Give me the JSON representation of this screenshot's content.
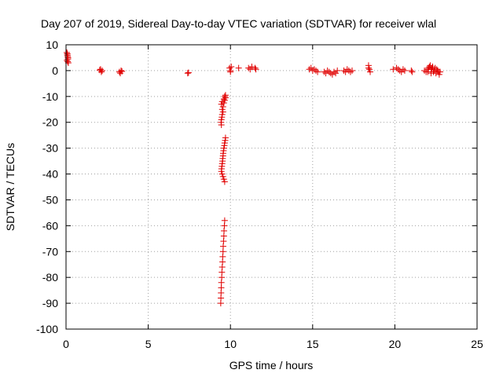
{
  "chart_data": {
    "type": "scatter",
    "title": "Day 207 of 2019, Sidereal Day-to-day VTEC variation (SDTVAR) for receiver wlal",
    "xlabel": "GPS time / hours",
    "ylabel": "SDTVAR / TECUs",
    "xlim": [
      0,
      25
    ],
    "ylim": [
      -100,
      10
    ],
    "xticks": [
      0,
      5,
      10,
      15,
      20,
      25
    ],
    "yticks": [
      10,
      0,
      -10,
      -20,
      -30,
      -40,
      -50,
      -60,
      -70,
      -80,
      -90,
      -100
    ],
    "grid": true,
    "marker": "+",
    "color": "#e00000",
    "series": [
      {
        "name": "SDTVAR",
        "points": [
          [
            0.05,
            7
          ],
          [
            0.08,
            6
          ],
          [
            0.1,
            5.5
          ],
          [
            0.12,
            5
          ],
          [
            0.06,
            4
          ],
          [
            0.1,
            3.5
          ],
          [
            0.14,
            3
          ],
          [
            0.08,
            6.5
          ],
          [
            0.12,
            4.5
          ],
          [
            2.1,
            0.5
          ],
          [
            2.2,
            0
          ],
          [
            2.15,
            -0.5
          ],
          [
            2.05,
            0.2
          ],
          [
            3.25,
            -0.5
          ],
          [
            3.35,
            0
          ],
          [
            3.3,
            -1
          ],
          [
            3.4,
            -0.3
          ],
          [
            7.4,
            -1
          ],
          [
            7.45,
            -0.8
          ],
          [
            9.45,
            -13
          ],
          [
            9.5,
            -12
          ],
          [
            9.55,
            -14
          ],
          [
            9.6,
            -11
          ],
          [
            9.65,
            -10
          ],
          [
            9.7,
            -9.5
          ],
          [
            9.5,
            -15
          ],
          [
            9.55,
            -16
          ],
          [
            9.5,
            -17
          ],
          [
            9.48,
            -18
          ],
          [
            9.45,
            -19
          ],
          [
            9.43,
            -20
          ],
          [
            9.45,
            -21
          ],
          [
            9.6,
            -12.5
          ],
          [
            9.65,
            -11.5
          ],
          [
            9.7,
            -10.5
          ],
          [
            9.7,
            -26
          ],
          [
            9.68,
            -27
          ],
          [
            9.65,
            -28
          ],
          [
            9.63,
            -29
          ],
          [
            9.6,
            -30
          ],
          [
            9.58,
            -31
          ],
          [
            9.56,
            -32
          ],
          [
            9.55,
            -33
          ],
          [
            9.53,
            -34
          ],
          [
            9.52,
            -35
          ],
          [
            9.5,
            -36
          ],
          [
            9.48,
            -37
          ],
          [
            9.46,
            -38
          ],
          [
            9.45,
            -39
          ],
          [
            9.5,
            -40
          ],
          [
            9.55,
            -41
          ],
          [
            9.6,
            -42
          ],
          [
            9.65,
            -43
          ],
          [
            9.65,
            -58
          ],
          [
            9.63,
            -60
          ],
          [
            9.61,
            -62
          ],
          [
            9.6,
            -64
          ],
          [
            9.58,
            -66
          ],
          [
            9.56,
            -68
          ],
          [
            9.55,
            -70
          ],
          [
            9.53,
            -72
          ],
          [
            9.52,
            -74
          ],
          [
            9.5,
            -76
          ],
          [
            9.48,
            -78
          ],
          [
            9.47,
            -80
          ],
          [
            9.45,
            -82
          ],
          [
            9.44,
            -84
          ],
          [
            9.43,
            -86
          ],
          [
            9.42,
            -88
          ],
          [
            9.41,
            -90
          ],
          [
            9.95,
            1
          ],
          [
            10.0,
            0
          ],
          [
            10.05,
            1.5
          ],
          [
            10.0,
            -0.5
          ],
          [
            10.5,
            1
          ],
          [
            11.1,
            1
          ],
          [
            11.2,
            0.5
          ],
          [
            11.3,
            1.5
          ],
          [
            11.5,
            1
          ],
          [
            11.55,
            0.5
          ],
          [
            14.8,
            0.5
          ],
          [
            14.9,
            1
          ],
          [
            15.0,
            0
          ],
          [
            15.1,
            0.5
          ],
          [
            15.2,
            0
          ],
          [
            15.3,
            -0.5
          ],
          [
            15.7,
            -0.5
          ],
          [
            15.8,
            -1
          ],
          [
            15.9,
            0
          ],
          [
            16.0,
            -0.5
          ],
          [
            16.1,
            -1
          ],
          [
            16.2,
            -1.5
          ],
          [
            16.3,
            -0.5
          ],
          [
            16.4,
            -1
          ],
          [
            16.5,
            0
          ],
          [
            16.9,
            0
          ],
          [
            17.0,
            -0.5
          ],
          [
            17.1,
            0.5
          ],
          [
            17.2,
            0
          ],
          [
            17.3,
            -0.5
          ],
          [
            17.4,
            0
          ],
          [
            18.4,
            2
          ],
          [
            18.45,
            0.5
          ],
          [
            18.5,
            -0.5
          ],
          [
            18.4,
            1
          ],
          [
            19.9,
            0.5
          ],
          [
            20.1,
            1
          ],
          [
            20.2,
            0.5
          ],
          [
            20.3,
            0
          ],
          [
            20.4,
            -0.5
          ],
          [
            20.5,
            0.5
          ],
          [
            20.6,
            0
          ],
          [
            21.0,
            0
          ],
          [
            21.05,
            -0.5
          ],
          [
            21.8,
            0
          ],
          [
            21.9,
            -0.5
          ],
          [
            22.0,
            0.5
          ],
          [
            22.05,
            1
          ],
          [
            22.1,
            1.5
          ],
          [
            22.15,
            2
          ],
          [
            22.2,
            0.5
          ],
          [
            22.25,
            1
          ],
          [
            22.3,
            1.5
          ],
          [
            22.35,
            -0.5
          ],
          [
            22.4,
            0
          ],
          [
            22.45,
            1
          ],
          [
            22.5,
            -1
          ],
          [
            22.55,
            0.5
          ],
          [
            22.6,
            0
          ],
          [
            22.65,
            -0.5
          ],
          [
            22.7,
            -1.5
          ],
          [
            22.75,
            -0.5
          ],
          [
            22.2,
            -1
          ],
          [
            22.0,
            -0.5
          ]
        ]
      }
    ]
  }
}
